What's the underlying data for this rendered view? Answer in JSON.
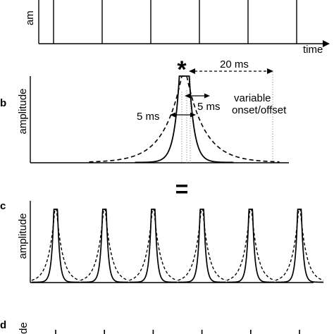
{
  "panel_a": {
    "ylabel_fragment": "am",
    "xlabel": "time",
    "impulse_count": 6
  },
  "panel_b": {
    "letter": "b",
    "ylabel": "amplitude",
    "asterisk": "*",
    "label_20ms": "20 ms",
    "label_5ms_right": "5 ms",
    "label_5ms_left": "5 ms",
    "variable_line1": "variable",
    "variable_line2": "onset/offset"
  },
  "equals_sign": "=",
  "panel_c": {
    "letter": "c",
    "ylabel": "amplitude",
    "pulse_count": 6
  },
  "panel_d": {
    "letter": "d",
    "ylabel_fragment": "de"
  },
  "colors": {
    "ink": "#000000",
    "guide": "#9a9a9a"
  }
}
